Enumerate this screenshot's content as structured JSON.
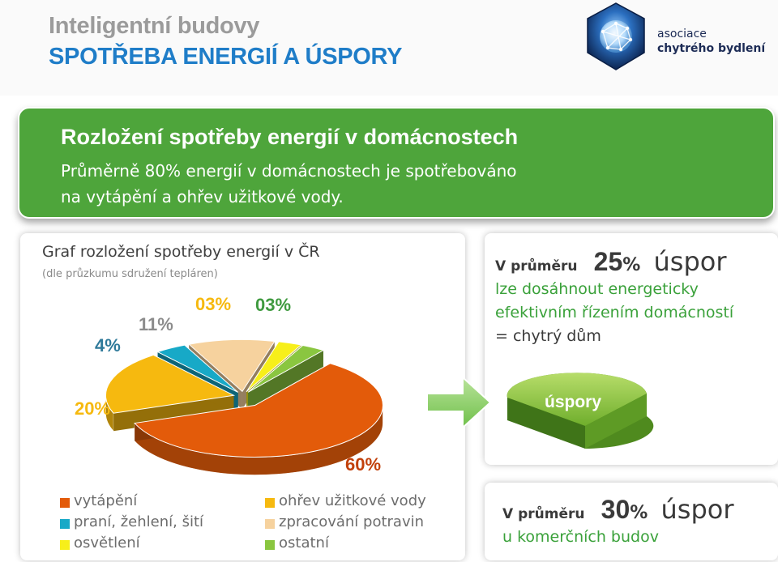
{
  "header": {
    "title": "Inteligentní budovy",
    "subtitle": "SPOTŘEBA ENERGIÍ  A ÚSPORY",
    "logo": {
      "line1": "asociace",
      "line2": "chytrého bydlení"
    }
  },
  "banner": {
    "title": "Rozložení spotřeby energií v domácnostech",
    "line1": "Průměrně 80% energií v domácnostech je spotřebováno",
    "line2": "na vytápění a ohřev užitkové vody."
  },
  "chart_data": {
    "type": "pie",
    "title": "Graf  rozložení spotřeby energií v ČR",
    "subtitle": "(dle průzkumu sdružení tepláren)",
    "slices": [
      {
        "name": "vytápění",
        "value": 60,
        "label": "60%",
        "color": "#e35b0a"
      },
      {
        "name": "ohřev užitkové vody",
        "value": 20,
        "label": "20%",
        "color": "#f6b90f"
      },
      {
        "name": "praní, žehlení, šití",
        "value": 4,
        "label": "4%",
        "color": "#17a9c7"
      },
      {
        "name": "zpracování potravin",
        "value": 11,
        "label": "11%",
        "color": "#f6d29e"
      },
      {
        "name": "osvětlení",
        "value": 3,
        "label": "03%",
        "color": "#f7ef1a"
      },
      {
        "name": "ostatní",
        "value": 3,
        "label": "03%",
        "color": "#8ac640"
      }
    ]
  },
  "legend": {
    "col1": [
      {
        "label": "vytápění",
        "color": "#e35b0a"
      },
      {
        "label": "praní, žehlení, šití",
        "color": "#17a9c7"
      },
      {
        "label": "osvětlení",
        "color": "#f7ef1a"
      }
    ],
    "col2": [
      {
        "label": "ohřev užitkové vody",
        "color": "#f6b90f"
      },
      {
        "label": "zpracování potravin",
        "color": "#f6d29e"
      },
      {
        "label": "ostatní",
        "color": "#8ac640"
      }
    ]
  },
  "savings_home": {
    "prefix": "V průměru",
    "number": "25",
    "pct": "%",
    "word": "úspor",
    "line1": "lze dosáhnout energeticky",
    "line2": "efektivním  řízením domácností",
    "line3": "= chytrý dům",
    "pie_label": "úspory"
  },
  "savings_commercial": {
    "prefix": "V průměru",
    "number": "30",
    "pct": "%",
    "word": "úspor",
    "line1": "u komerčních budov"
  },
  "colors": {
    "green": "#4ea53b",
    "blue": "#1f7dc8",
    "text_green": "#3aa13a"
  }
}
